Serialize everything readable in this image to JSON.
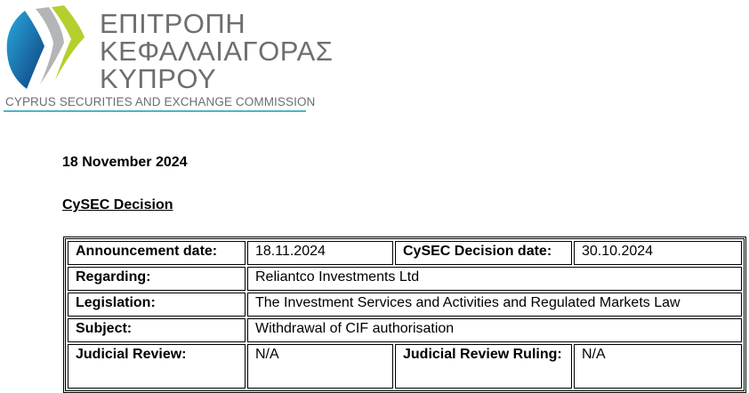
{
  "logo": {
    "greek_lines": [
      "ΕΠΙΤΡΟΠΗ",
      "ΚΕΦΑΛΑΙΑΓΟΡΑΣ",
      "ΚΥΠΡΟΥ"
    ],
    "english": "CYPRUS SECURITIES AND EXCHANGE COMMISSION",
    "colors": {
      "blue": "#1a75b8",
      "grey": "#b3b5b8",
      "green": "#b5cf2e",
      "text": "#6d6e71",
      "rule": "#4fb3c9"
    }
  },
  "document": {
    "date": "18 November 2024",
    "heading": "CySEC Decision"
  },
  "table": {
    "announcement_label": "Announcement date:",
    "announcement_value": "18.11.2024",
    "decision_label": "CySEC Decision date:",
    "decision_value": "30.10.2024",
    "regarding_label": "Regarding:",
    "regarding_value": "Reliantco Investments Ltd",
    "legislation_label": "Legislation:",
    "legislation_value": "The Investment Services and Activities and Regulated Markets Law",
    "subject_label": "Subject:",
    "subject_value": "Withdrawal of CIF authorisation",
    "judicial_label": "Judicial Review:",
    "judicial_value": "N/A",
    "ruling_label": "Judicial Review Ruling:",
    "ruling_value": "N/A"
  }
}
